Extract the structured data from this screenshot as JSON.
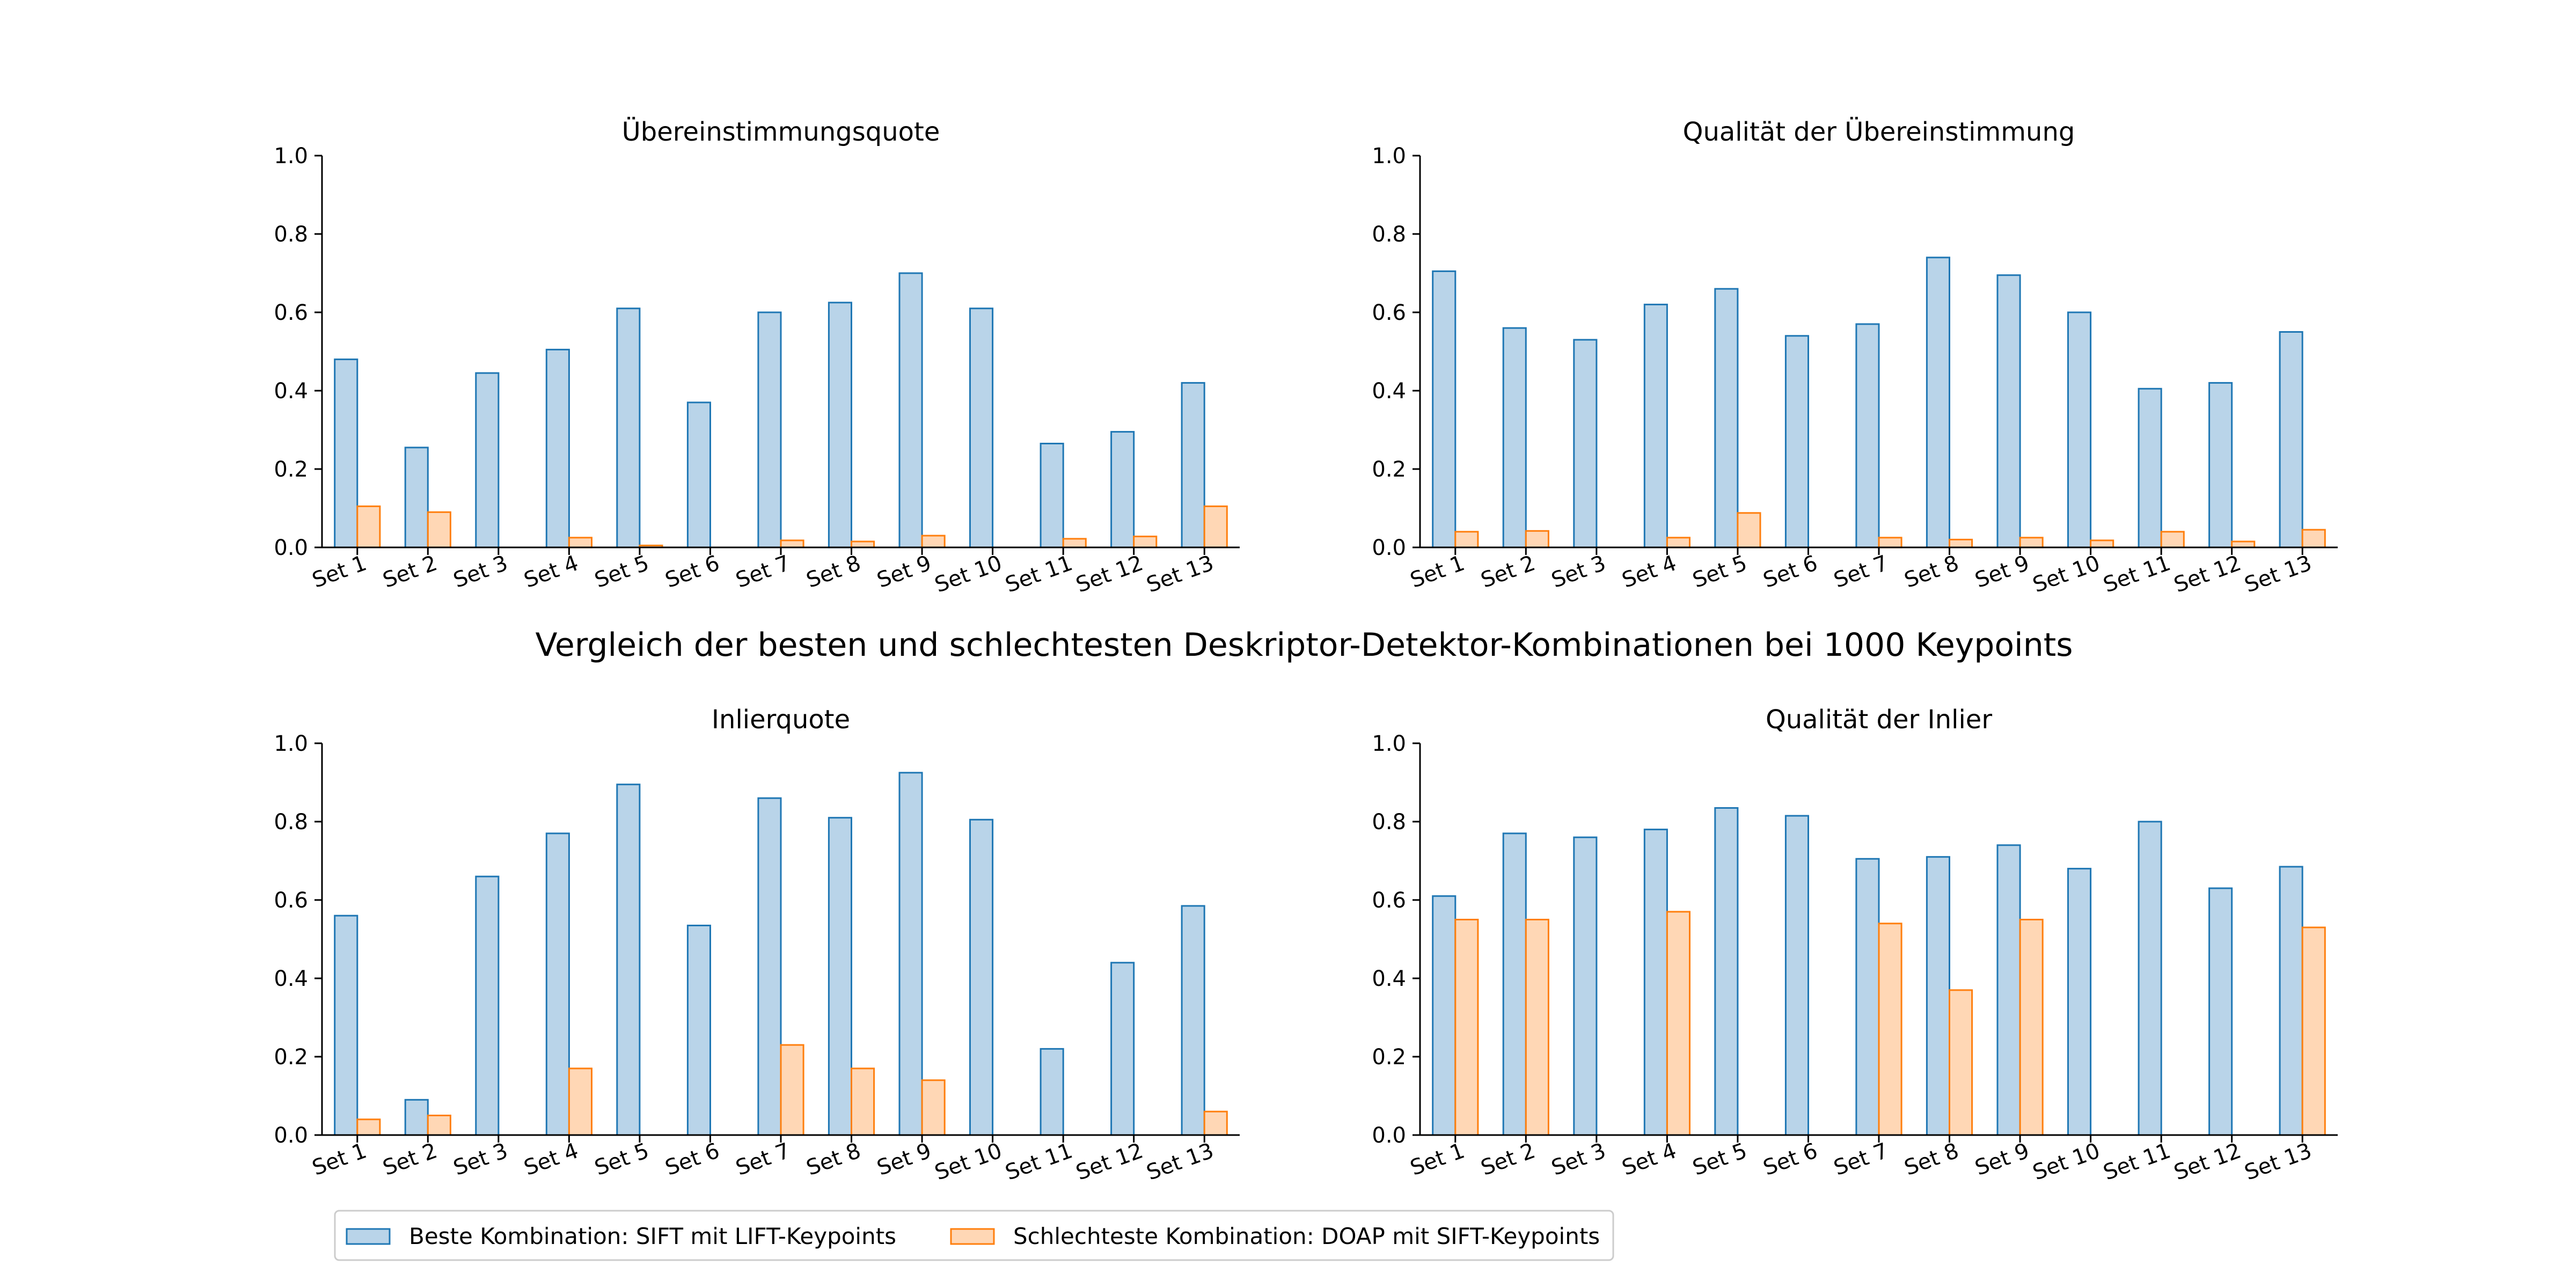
{
  "suptitle": "Vergleich der besten und schlechtesten Deskriptor-Detektor-Kombinationen bei 1000 Keypoints",
  "legend": {
    "placement": "bottom-left",
    "entries": [
      {
        "label": "Beste Kombination: SIFT mit LIFT-Keypoints",
        "color": "#1f77b4"
      },
      {
        "label": "Schlechteste Kombination: DOAP mit SIFT-Keypoints",
        "color": "#ff7f0e"
      }
    ]
  },
  "colors": {
    "best_fill": "#b9d4e9",
    "best_edge": "#1f77b4",
    "worst_fill": "#ffd7b5",
    "worst_edge": "#ff7f0e"
  },
  "chart_data": [
    {
      "type": "bar",
      "title": "Übereinstimmungsquote",
      "categories": [
        "Set 1",
        "Set 2",
        "Set 3",
        "Set 4",
        "Set 5",
        "Set 6",
        "Set 7",
        "Set 8",
        "Set 9",
        "Set 10",
        "Set 11",
        "Set 12",
        "Set 13"
      ],
      "ylim": [
        0,
        1.0
      ],
      "yticks": [
        0.0,
        0.2,
        0.4,
        0.6,
        0.8,
        1.0
      ],
      "series": [
        {
          "name": "Beste Kombination: SIFT mit LIFT-Keypoints",
          "values": [
            0.48,
            0.255,
            0.445,
            0.505,
            0.61,
            0.37,
            0.6,
            0.625,
            0.7,
            0.61,
            0.265,
            0.295,
            0.42
          ]
        },
        {
          "name": "Schlechteste Kombination: DOAP mit SIFT-Keypoints",
          "values": [
            0.105,
            0.09,
            0.0,
            0.025,
            0.005,
            0.0,
            0.018,
            0.015,
            0.03,
            0.0,
            0.022,
            0.028,
            0.105
          ]
        }
      ]
    },
    {
      "type": "bar",
      "title": "Qualität der Übereinstimmung",
      "categories": [
        "Set 1",
        "Set 2",
        "Set 3",
        "Set 4",
        "Set 5",
        "Set 6",
        "Set 7",
        "Set 8",
        "Set 9",
        "Set 10",
        "Set 11",
        "Set 12",
        "Set 13"
      ],
      "ylim": [
        0,
        1.0
      ],
      "yticks": [
        0.0,
        0.2,
        0.4,
        0.6,
        0.8,
        1.0
      ],
      "series": [
        {
          "name": "Beste Kombination: SIFT mit LIFT-Keypoints",
          "values": [
            0.705,
            0.56,
            0.53,
            0.62,
            0.66,
            0.54,
            0.57,
            0.74,
            0.695,
            0.6,
            0.405,
            0.42,
            0.55
          ]
        },
        {
          "name": "Schlechteste Kombination: DOAP mit SIFT-Keypoints",
          "values": [
            0.04,
            0.042,
            0.0,
            0.025,
            0.088,
            0.0,
            0.025,
            0.02,
            0.025,
            0.018,
            0.04,
            0.015,
            0.045
          ]
        }
      ]
    },
    {
      "type": "bar",
      "title": "Inlierquote",
      "categories": [
        "Set 1",
        "Set 2",
        "Set 3",
        "Set 4",
        "Set 5",
        "Set 6",
        "Set 7",
        "Set 8",
        "Set 9",
        "Set 10",
        "Set 11",
        "Set 12",
        "Set 13"
      ],
      "ylim": [
        0,
        1.0
      ],
      "yticks": [
        0.0,
        0.2,
        0.4,
        0.6,
        0.8,
        1.0
      ],
      "series": [
        {
          "name": "Beste Kombination: SIFT mit LIFT-Keypoints",
          "values": [
            0.56,
            0.09,
            0.66,
            0.77,
            0.895,
            0.535,
            0.86,
            0.81,
            0.925,
            0.805,
            0.22,
            0.44,
            0.585
          ]
        },
        {
          "name": "Schlechteste Kombination: DOAP mit SIFT-Keypoints",
          "values": [
            0.04,
            0.05,
            0.0,
            0.17,
            0.0,
            0.0,
            0.23,
            0.17,
            0.14,
            0.0,
            0.0,
            0.0,
            0.06
          ]
        }
      ]
    },
    {
      "type": "bar",
      "title": "Qualität der Inlier",
      "categories": [
        "Set 1",
        "Set 2",
        "Set 3",
        "Set 4",
        "Set 5",
        "Set 6",
        "Set 7",
        "Set 8",
        "Set 9",
        "Set 10",
        "Set 11",
        "Set 12",
        "Set 13"
      ],
      "ylim": [
        0,
        1.0
      ],
      "yticks": [
        0.0,
        0.2,
        0.4,
        0.6,
        0.8,
        1.0
      ],
      "series": [
        {
          "name": "Beste Kombination: SIFT mit LIFT-Keypoints",
          "values": [
            0.61,
            0.77,
            0.76,
            0.78,
            0.835,
            0.815,
            0.705,
            0.71,
            0.74,
            0.68,
            0.8,
            0.63,
            0.685
          ]
        },
        {
          "name": "Schlechteste Kombination: DOAP mit SIFT-Keypoints",
          "values": [
            0.55,
            0.55,
            0.0,
            0.57,
            0.0,
            0.0,
            0.54,
            0.37,
            0.55,
            0.0,
            0.0,
            0.0,
            0.53
          ]
        }
      ]
    }
  ]
}
